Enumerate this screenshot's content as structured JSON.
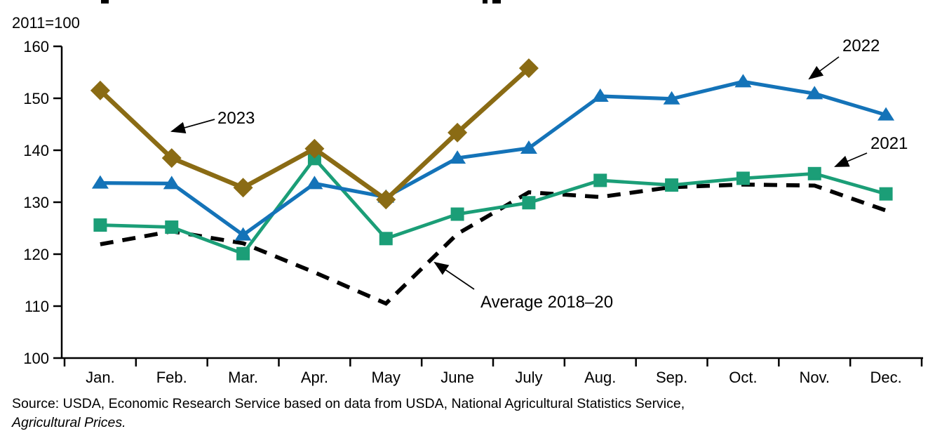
{
  "chart": {
    "subtitle": "2011=100"
  },
  "chart_data": {
    "type": "line",
    "categories": [
      "Jan.",
      "Feb.",
      "Mar.",
      "Apr.",
      "May",
      "June",
      "July",
      "Aug.",
      "Sep.",
      "Oct.",
      "Nov.",
      "Dec."
    ],
    "xlabel": "",
    "ylabel": "2011=100",
    "ylim": [
      100,
      160
    ],
    "yticks": [
      100,
      110,
      120,
      130,
      140,
      150,
      160
    ],
    "grid": false,
    "legend_position": "annotated-with-arrows",
    "series": [
      {
        "name": "2023",
        "color": "#8a6b14",
        "marker": "diamond",
        "dashed": false,
        "values": [
          151.5,
          138.5,
          132.8,
          140.3,
          130.5,
          143.4,
          155.8,
          null,
          null,
          null,
          null,
          null
        ]
      },
      {
        "name": "2022",
        "color": "#1473b8",
        "marker": "triangle",
        "dashed": false,
        "values": [
          133.7,
          133.6,
          123.7,
          133.6,
          131.0,
          138.5,
          140.4,
          150.4,
          149.9,
          153.2,
          150.9,
          146.8
        ]
      },
      {
        "name": "2021",
        "color": "#1b9e77",
        "marker": "square",
        "dashed": false,
        "values": [
          125.6,
          125.2,
          120.1,
          138.4,
          123.0,
          127.7,
          129.9,
          134.2,
          133.3,
          134.6,
          135.5,
          131.6
        ]
      },
      {
        "name": "Average 2018–20",
        "color": "#000000",
        "marker": "none",
        "dashed": true,
        "values": [
          121.9,
          124.4,
          122.1,
          116.5,
          110.5,
          123.9,
          131.9,
          131.0,
          132.9,
          133.4,
          133.2,
          128.4
        ]
      }
    ]
  },
  "footer": {
    "source_line1": "Source: USDA, Economic Research Service based on data from USDA, National Agricultural Statistics Service,",
    "source_line2": "Agricultural Prices."
  }
}
